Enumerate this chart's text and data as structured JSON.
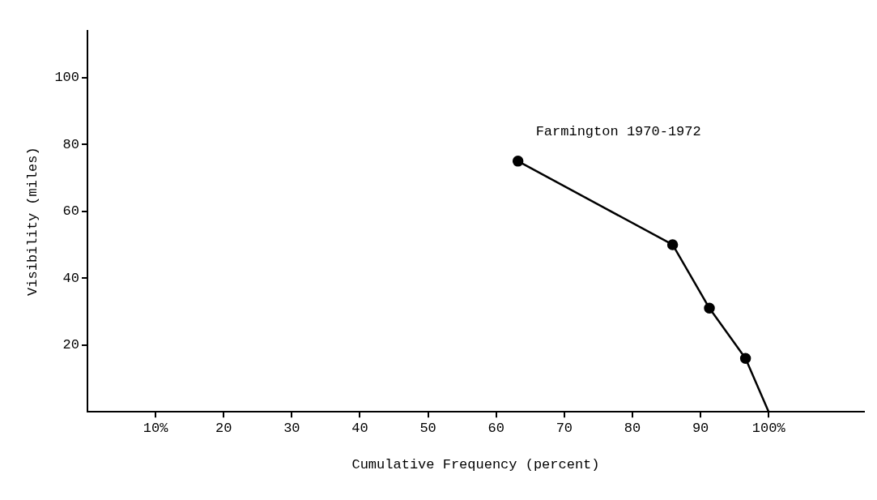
{
  "chart_data": {
    "type": "line",
    "xlabel": "Cumulative Frequency (percent)",
    "ylabel": "Visibility (miles)",
    "x": [
      63.2,
      85.9,
      91.3,
      96.6,
      100
    ],
    "series": [
      {
        "name": "Farmington 1970-1972",
        "color": "#000000",
        "values": [
          75,
          50,
          31,
          16,
          0
        ]
      }
    ],
    "xlim": [
      0,
      114
    ],
    "ylim": [
      0,
      114
    ],
    "xticks": [
      {
        "value": 10,
        "label": "10%"
      },
      20,
      30,
      40,
      50,
      60,
      70,
      80,
      90,
      {
        "value": 100,
        "label": "100%"
      }
    ],
    "yticks": [
      20,
      40,
      60,
      80,
      100
    ],
    "grid": false,
    "legend": false,
    "marker": "circle",
    "line_style": "solid"
  }
}
